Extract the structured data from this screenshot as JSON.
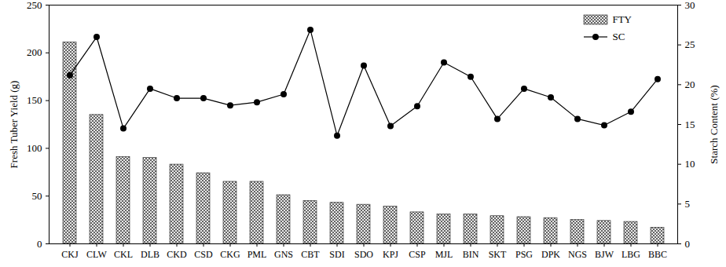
{
  "chart_data": {
    "type": "bar",
    "categories": [
      "CKJ",
      "CLW",
      "CKL",
      "DLB",
      "CKD",
      "CSD",
      "CKG",
      "PML",
      "GNS",
      "CBT",
      "SDI",
      "SDO",
      "KPJ",
      "CSP",
      "MJL",
      "BIN",
      "SKT",
      "PSG",
      "DPK",
      "NGS",
      "BJW",
      "LBG",
      "BBC"
    ],
    "ylabel": "Fresh Tuber Yield (g)",
    "y2label": "Starch Content (%)",
    "ylim": [
      0,
      250
    ],
    "yticks": [
      0,
      50,
      100,
      150,
      200,
      250
    ],
    "y2lim": [
      0,
      30
    ],
    "y2ticks": [
      0,
      5,
      10,
      15,
      20,
      25,
      30
    ],
    "legend": "top-right",
    "series": [
      {
        "name": "FTY",
        "type": "bar",
        "color": "#555555",
        "values": [
          211,
          135,
          91,
          90,
          83,
          74,
          65,
          65,
          51,
          45,
          43,
          41,
          39,
          33,
          31,
          31,
          29,
          28,
          27,
          25,
          24,
          23,
          17
        ]
      },
      {
        "name": "SC",
        "type": "line",
        "axis": "y2",
        "color": "#000000",
        "marker": "circle",
        "line_style": "solid",
        "values": [
          21.2,
          26.0,
          14.5,
          19.5,
          18.3,
          18.3,
          17.4,
          17.8,
          18.8,
          26.9,
          13.6,
          22.4,
          14.8,
          17.3,
          22.8,
          21.0,
          15.7,
          19.5,
          18.4,
          15.7,
          14.9,
          16.6,
          20.7
        ]
      }
    ]
  }
}
